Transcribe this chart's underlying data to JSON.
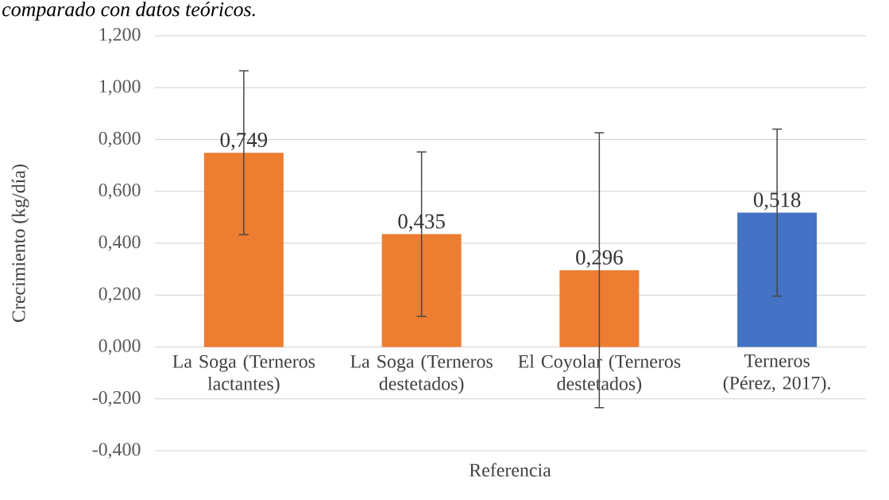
{
  "chart_data": {
    "type": "bar",
    "title": "comparado con datos teóricos.",
    "xlabel": "Referencia",
    "ylabel": "Crecimiento (kg/día)",
    "categories": [
      "La Soga (Terneros lactantes)",
      "La Soga (Terneros destetados)",
      "El Coyolar (Terneros destetados)",
      "Terneros (Pérez, 2017)."
    ],
    "values": [
      0.749,
      0.435,
      0.296,
      0.518
    ],
    "colors": [
      "#ed7d31",
      "#ed7d31",
      "#ed7d31",
      "#4472c4"
    ],
    "errors": [
      0.316,
      0.317,
      0.53,
      0.322
    ],
    "value_labels": [
      "0,749",
      "0,435",
      "0,296",
      "0,518"
    ],
    "ylim": [
      -0.4,
      1.2
    ],
    "yticks": [
      {
        "value": -0.4,
        "label": "-0,400"
      },
      {
        "value": -0.2,
        "label": "-0,200"
      },
      {
        "value": 0,
        "label": "0,000"
      },
      {
        "value": 0.2,
        "label": "0,200"
      },
      {
        "value": 0.4,
        "label": "0,400"
      },
      {
        "value": 0.6,
        "label": "0,600"
      },
      {
        "value": 0.8,
        "label": "0,800"
      },
      {
        "value": 1.0,
        "label": "1,000"
      },
      {
        "value": 1.2,
        "label": "1,200"
      }
    ],
    "grid": "y"
  }
}
